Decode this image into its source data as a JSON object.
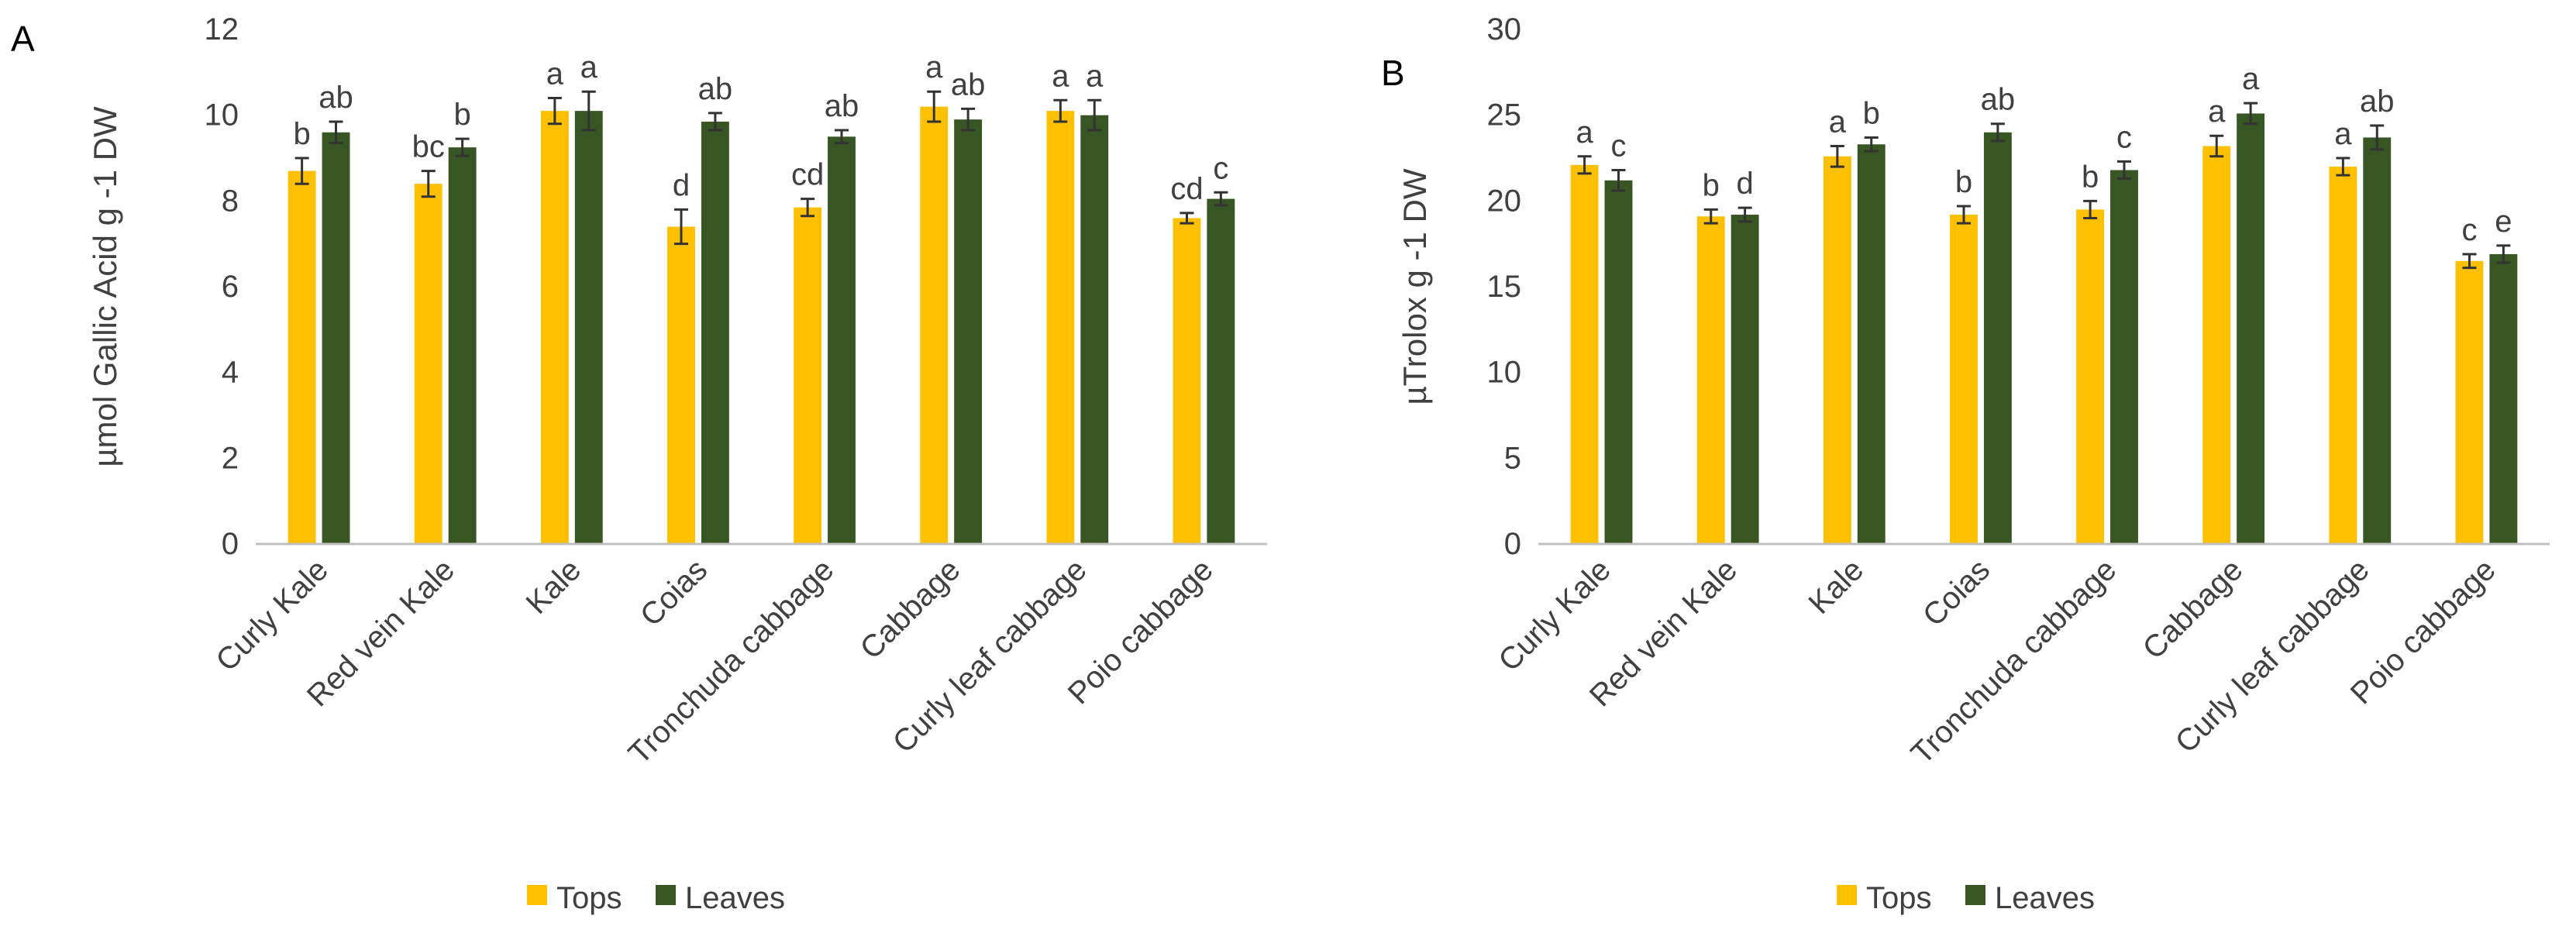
{
  "chart_data": [
    {
      "type": "bar",
      "panel_label": "A",
      "ylabel": "µmol Gallic Acid g -1 DW",
      "ylim": [
        0,
        12
      ],
      "yticks": [
        0,
        2,
        4,
        6,
        8,
        10,
        12
      ],
      "grid": false,
      "legend": "bottom",
      "categories": [
        "Curly Kale",
        "Red vein Kale",
        "Kale",
        "Coias",
        "Tronchuda cabbage",
        "Cabbage",
        "Curly leaf cabbage",
        "Poio cabbage"
      ],
      "series": [
        {
          "name": "Tops",
          "color": "#FFC000",
          "values": [
            8.7,
            8.4,
            10.1,
            7.4,
            7.85,
            10.2,
            10.1,
            7.6
          ],
          "errors": [
            0.3,
            0.3,
            0.3,
            0.4,
            0.2,
            0.35,
            0.25,
            0.12
          ],
          "letters": [
            "b",
            "bc",
            "a",
            "d",
            "cd",
            "a",
            "a",
            "cd"
          ]
        },
        {
          "name": "Leaves",
          "color": "#375623",
          "values": [
            9.6,
            9.25,
            10.1,
            9.85,
            9.5,
            9.9,
            10.0,
            8.05
          ],
          "errors": [
            0.25,
            0.2,
            0.45,
            0.2,
            0.15,
            0.25,
            0.35,
            0.15
          ],
          "letters": [
            "ab",
            "b",
            "a",
            "ab",
            "ab",
            "ab",
            "a",
            "c"
          ]
        }
      ]
    },
    {
      "type": "bar",
      "panel_label": "B",
      "ylabel": "µTrolox g -1 DW",
      "ylim": [
        0,
        30
      ],
      "yticks": [
        0,
        5,
        10,
        15,
        20,
        25,
        30
      ],
      "grid": false,
      "legend": "bottom",
      "categories": [
        "Curly Kale",
        "Red vein Kale",
        "Kale",
        "Coias",
        "Tronchuda cabbage",
        "Cabbage",
        "Curly leaf cabbage",
        "Poio cabbage"
      ],
      "series": [
        {
          "name": "Tops",
          "color": "#FFC000",
          "values": [
            22.1,
            19.1,
            22.6,
            19.2,
            19.5,
            23.2,
            22.0,
            16.5
          ],
          "errors": [
            0.5,
            0.4,
            0.6,
            0.5,
            0.5,
            0.6,
            0.5,
            0.4
          ],
          "letters": [
            "a",
            "b",
            "a",
            "b",
            "b",
            "a",
            "a",
            "c"
          ]
        },
        {
          "name": "Leaves",
          "color": "#375623",
          "values": [
            21.2,
            19.2,
            23.3,
            24.0,
            21.8,
            25.1,
            23.7,
            16.9
          ],
          "errors": [
            0.6,
            0.4,
            0.4,
            0.5,
            0.5,
            0.6,
            0.7,
            0.5
          ],
          "letters": [
            "c",
            "d",
            "b",
            "ab",
            "c",
            "a",
            "ab",
            "e"
          ]
        }
      ]
    }
  ]
}
